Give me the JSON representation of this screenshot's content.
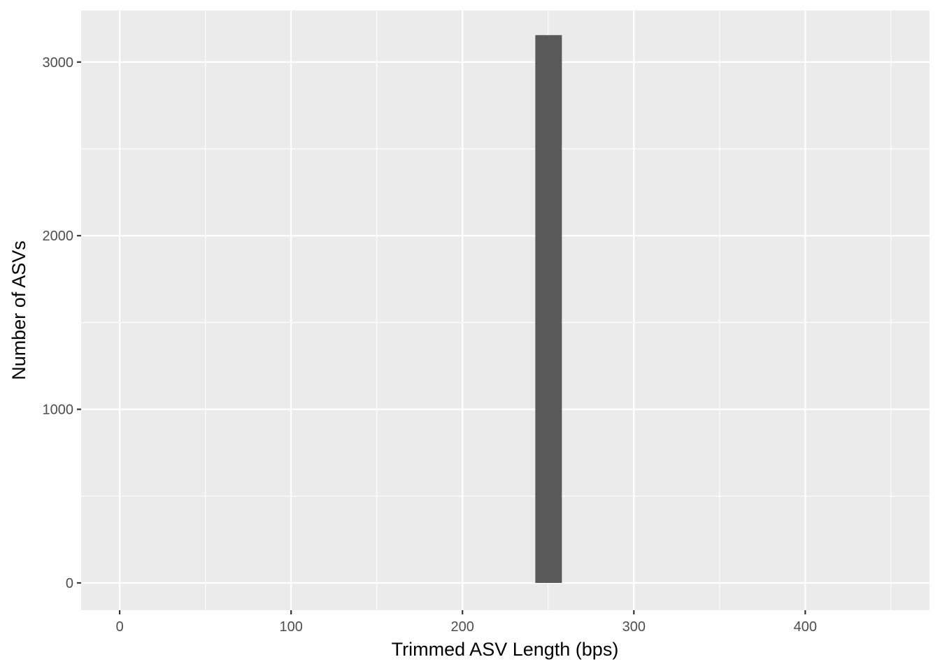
{
  "chart_data": {
    "type": "bar",
    "title": "",
    "xlabel": "Trimmed ASV Length (bps)",
    "ylabel": "Number of ASVs",
    "x_ticks": [
      0,
      100,
      200,
      300,
      400
    ],
    "x_minor_ticks": [
      50,
      150,
      250,
      350,
      450
    ],
    "y_ticks": [
      0,
      1000,
      2000,
      3000
    ],
    "y_minor_ticks": [
      500,
      1500,
      2500
    ],
    "xlim": [
      -22.5,
      472.5
    ],
    "ylim": [
      -157,
      3297
    ],
    "grid": true,
    "bins": [
      {
        "x_start": 242.5,
        "x_end": 258,
        "count": 3155
      }
    ],
    "colors": {
      "panel_background": "#EBEBEB",
      "grid_line": "#FFFFFF",
      "bar_fill": "#595959",
      "tick_mark": "#333333"
    }
  }
}
